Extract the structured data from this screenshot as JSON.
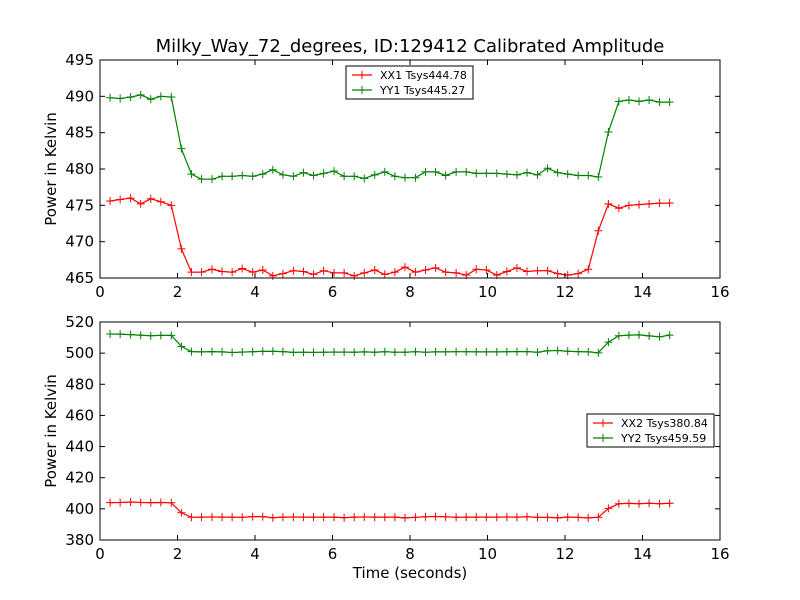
{
  "chart_data": [
    {
      "type": "line",
      "title": "Milky_Way_72_degrees, ID:129412 Calibrated Amplitude",
      "xlabel": "",
      "ylabel": "Power in Kelvin",
      "xlim": [
        0,
        16
      ],
      "ylim": [
        465,
        495
      ],
      "xticks": [
        "0",
        "2",
        "4",
        "6",
        "8",
        "10",
        "12",
        "14",
        "16"
      ],
      "yticks": [
        "465",
        "470",
        "475",
        "480",
        "485",
        "490",
        "495"
      ],
      "grid": false,
      "legend_position": "top-center",
      "x": [
        0.26,
        0.52,
        0.79,
        1.05,
        1.31,
        1.57,
        1.84,
        2.1,
        2.36,
        2.62,
        2.89,
        3.15,
        3.41,
        3.67,
        3.94,
        4.2,
        4.46,
        4.72,
        4.99,
        5.25,
        5.51,
        5.77,
        6.04,
        6.3,
        6.56,
        6.82,
        7.09,
        7.35,
        7.61,
        7.87,
        8.14,
        8.4,
        8.66,
        8.92,
        9.19,
        9.45,
        9.71,
        9.97,
        10.24,
        10.5,
        10.76,
        11.02,
        11.29,
        11.55,
        11.81,
        12.07,
        12.34,
        12.6,
        12.86,
        13.12,
        13.39,
        13.65,
        13.91,
        14.17,
        14.44,
        14.7
      ],
      "series": [
        {
          "name": "XX1 Tsys444.78",
          "color": "#ff0000",
          "values": [
            475.6,
            475.8,
            476.0,
            475.2,
            475.9,
            475.5,
            475.0,
            469.0,
            465.8,
            465.8,
            466.2,
            465.9,
            465.8,
            466.3,
            465.8,
            466.1,
            465.3,
            465.6,
            466.0,
            465.9,
            465.5,
            466.0,
            465.7,
            465.7,
            465.3,
            465.7,
            466.1,
            465.5,
            465.8,
            466.5,
            465.8,
            466.1,
            466.4,
            465.8,
            465.7,
            465.4,
            466.2,
            466.1,
            465.4,
            465.9,
            466.4,
            465.9,
            466.0,
            466.0,
            465.6,
            465.4,
            465.6,
            466.2,
            471.5,
            475.2,
            474.6,
            475.0,
            475.1,
            475.2,
            475.3,
            475.3
          ]
        },
        {
          "name": "YY1 Tsys445.27",
          "color": "#008000",
          "values": [
            489.8,
            489.7,
            489.9,
            490.2,
            489.6,
            490.0,
            489.9,
            482.8,
            479.3,
            478.6,
            478.6,
            479.0,
            479.0,
            479.1,
            479.0,
            479.3,
            479.9,
            479.2,
            479.0,
            479.5,
            479.1,
            479.4,
            479.7,
            479.0,
            479.0,
            478.7,
            479.2,
            479.6,
            479.0,
            478.8,
            478.8,
            479.6,
            479.6,
            479.1,
            479.6,
            479.6,
            479.4,
            479.4,
            479.4,
            479.3,
            479.2,
            479.5,
            479.2,
            480.1,
            479.5,
            479.3,
            479.1,
            479.1,
            478.9,
            485.1,
            489.3,
            489.5,
            489.3,
            489.5,
            489.2,
            489.2
          ]
        }
      ]
    },
    {
      "type": "line",
      "title": "",
      "xlabel": "Time (seconds)",
      "ylabel": "Power in Kelvin",
      "xlim": [
        0,
        16
      ],
      "ylim": [
        380,
        520
      ],
      "xticks": [
        "0",
        "2",
        "4",
        "6",
        "8",
        "10",
        "12",
        "14",
        "16"
      ],
      "yticks": [
        "380",
        "400",
        "420",
        "440",
        "460",
        "480",
        "500",
        "520"
      ],
      "grid": false,
      "legend_position": "center-right",
      "x": [
        0.26,
        0.52,
        0.79,
        1.05,
        1.31,
        1.57,
        1.84,
        2.1,
        2.36,
        2.62,
        2.89,
        3.15,
        3.41,
        3.67,
        3.94,
        4.2,
        4.46,
        4.72,
        4.99,
        5.25,
        5.51,
        5.77,
        6.04,
        6.3,
        6.56,
        6.82,
        7.09,
        7.35,
        7.61,
        7.87,
        8.14,
        8.4,
        8.66,
        8.92,
        9.19,
        9.45,
        9.71,
        9.97,
        10.24,
        10.5,
        10.76,
        11.02,
        11.29,
        11.55,
        11.81,
        12.07,
        12.34,
        12.6,
        12.86,
        13.12,
        13.39,
        13.65,
        13.91,
        14.17,
        14.44,
        14.7
      ],
      "series": [
        {
          "name": "XX2 Tsys380.84",
          "color": "#ff0000",
          "values": [
            404.0,
            404.1,
            404.4,
            404.1,
            404.0,
            404.1,
            403.9,
            397.5,
            394.6,
            394.7,
            394.8,
            394.7,
            394.7,
            394.6,
            395.0,
            395.0,
            394.3,
            394.7,
            394.8,
            394.7,
            394.7,
            394.7,
            394.7,
            394.3,
            394.7,
            394.8,
            394.7,
            394.7,
            394.7,
            394.2,
            394.6,
            394.9,
            395.1,
            394.9,
            394.6,
            394.7,
            394.7,
            394.7,
            394.7,
            394.8,
            394.7,
            394.9,
            394.5,
            394.5,
            394.2,
            394.7,
            394.5,
            394.2,
            394.6,
            400.3,
            403.3,
            403.5,
            403.3,
            403.6,
            403.3,
            403.6
          ]
        },
        {
          "name": "YY2 Tsys459.59",
          "color": "#008000",
          "values": [
            512.3,
            512.2,
            511.9,
            511.5,
            511.2,
            511.4,
            511.4,
            504.3,
            501.0,
            500.8,
            501.0,
            500.8,
            500.4,
            500.7,
            500.9,
            501.1,
            501.2,
            501.0,
            500.5,
            500.6,
            500.5,
            500.6,
            500.7,
            500.7,
            500.6,
            500.8,
            500.6,
            500.9,
            500.6,
            500.6,
            500.9,
            500.6,
            500.8,
            500.8,
            500.9,
            500.9,
            500.8,
            500.8,
            500.8,
            500.9,
            501.0,
            501.0,
            500.6,
            501.5,
            501.7,
            501.2,
            501.0,
            500.8,
            500.2,
            507.1,
            511.2,
            511.6,
            511.7,
            511.1,
            510.5,
            511.6
          ]
        }
      ]
    }
  ]
}
